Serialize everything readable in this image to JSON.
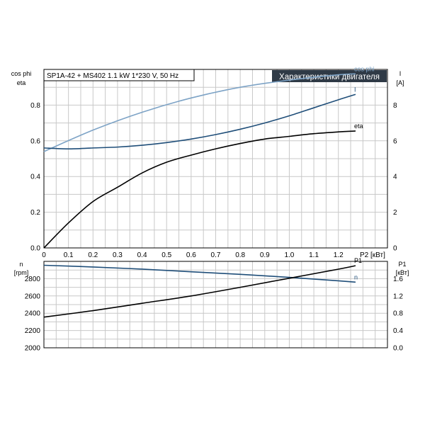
{
  "colors": {
    "dark_blue": "#1f4e79",
    "light_blue": "#7da3c6",
    "black": "#000000",
    "title_bg": "#2f3a46",
    "grid": "#c8c8c8"
  },
  "chart_data": [
    {
      "type": "line",
      "subtitle": "SP1A-42 + MS402   1.1 kW   1*230 V, 50 Hz",
      "title": "Характеристики двигателя",
      "xlabel": "P2 [кВт]",
      "ylabel_left_1": "cos phi",
      "ylabel_left_2": "eta",
      "ylabel_right_1": "I",
      "ylabel_right_2": "[A]",
      "xlim": [
        0,
        1.4
      ],
      "ylim": [
        0,
        1.0
      ],
      "ylim_right": [
        0,
        10
      ],
      "grid": true,
      "x_ticks": [
        "0",
        "0.1",
        "0.2",
        "0.3",
        "0.4",
        "0.5",
        "0.6",
        "0.7",
        "0.8",
        "0.9",
        "1.0",
        "1.1",
        "1.2"
      ],
      "y_ticks_left": [
        "0.0",
        "0.2",
        "0.4",
        "0.6",
        "0.8"
      ],
      "y_ticks_right": [
        "0",
        "2",
        "4",
        "6",
        "8"
      ],
      "series": [
        {
          "name": "cos phi",
          "axis": "left",
          "color": "#7da3c6",
          "x": [
            0,
            0.2,
            0.4,
            0.6,
            0.8,
            1.0,
            1.2,
            1.27
          ],
          "y": [
            0.54,
            0.66,
            0.76,
            0.84,
            0.9,
            0.94,
            0.97,
            0.975
          ]
        },
        {
          "name": "I",
          "axis": "right",
          "color": "#1f4e79",
          "x": [
            0,
            0.1,
            0.2,
            0.3,
            0.4,
            0.5,
            0.6,
            0.7,
            0.8,
            0.9,
            1.0,
            1.1,
            1.2,
            1.27
          ],
          "y": [
            5.6,
            5.55,
            5.6,
            5.65,
            5.75,
            5.9,
            6.1,
            6.35,
            6.65,
            7.0,
            7.4,
            7.85,
            8.3,
            8.6
          ]
        },
        {
          "name": "eta",
          "axis": "left",
          "color": "#000000",
          "x": [
            0,
            0.1,
            0.2,
            0.3,
            0.4,
            0.5,
            0.6,
            0.7,
            0.8,
            0.9,
            1.0,
            1.1,
            1.2,
            1.27
          ],
          "y": [
            0.0,
            0.14,
            0.26,
            0.34,
            0.42,
            0.48,
            0.52,
            0.555,
            0.585,
            0.61,
            0.625,
            0.64,
            0.65,
            0.655
          ]
        }
      ]
    },
    {
      "type": "line",
      "xlabel": "",
      "ylabel_left_1": "n",
      "ylabel_left_2": "[rpm]",
      "ylabel_right_1": "P1",
      "ylabel_right_2": "[кВт]",
      "xlim": [
        0,
        1.4
      ],
      "ylim": [
        2000,
        3000
      ],
      "ylim_right": [
        0,
        2.0
      ],
      "grid": true,
      "y_ticks_left": [
        "2000",
        "2200",
        "2400",
        "2600",
        "2800"
      ],
      "y_ticks_right": [
        "0.0",
        "0.4",
        "0.8",
        "1.2",
        "1.6"
      ],
      "series": [
        {
          "name": "n",
          "axis": "left",
          "color": "#1f4e79",
          "x": [
            0,
            0.2,
            0.4,
            0.6,
            0.8,
            1.0,
            1.2,
            1.27
          ],
          "y": [
            2955,
            2935,
            2910,
            2880,
            2850,
            2815,
            2775,
            2760
          ]
        },
        {
          "name": "P1",
          "axis": "right",
          "color": "#000000",
          "x": [
            0,
            0.2,
            0.4,
            0.6,
            0.8,
            1.0,
            1.2,
            1.27
          ],
          "y": [
            0.71,
            0.86,
            1.03,
            1.2,
            1.4,
            1.61,
            1.82,
            1.9
          ]
        }
      ]
    }
  ]
}
